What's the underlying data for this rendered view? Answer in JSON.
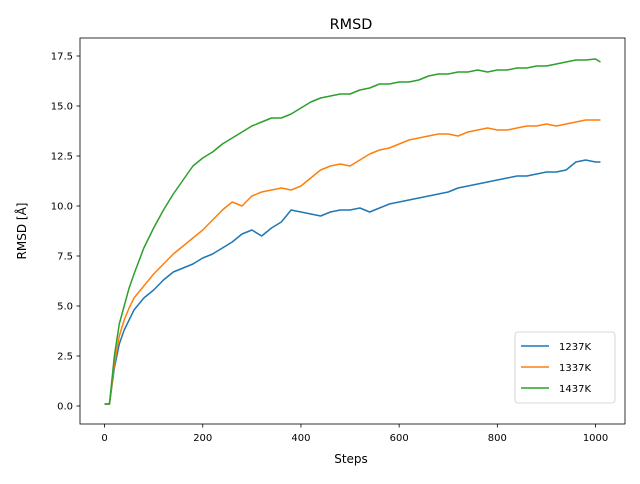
{
  "chart_data": {
    "type": "line",
    "title": "RMSD",
    "xlabel": "Steps",
    "ylabel": "RMSD [Å]",
    "xlim": [
      -50,
      1060
    ],
    "ylim": [
      -0.9,
      18.4
    ],
    "xticks": [
      0,
      200,
      400,
      600,
      800,
      1000
    ],
    "xtick_labels": [
      "0",
      "200",
      "400",
      "600",
      "800",
      "1000"
    ],
    "yticks": [
      0,
      2.5,
      5,
      7.5,
      10,
      12.5,
      15,
      17.5
    ],
    "ytick_labels": [
      "0.0",
      "2.5",
      "5.0",
      "7.5",
      "10.0",
      "12.5",
      "15.0",
      "17.5"
    ],
    "grid": false,
    "legend_position": "lower right",
    "series": [
      {
        "name": "1237K",
        "color": "#1f77b4",
        "x": [
          0,
          10,
          20,
          30,
          40,
          50,
          60,
          80,
          100,
          120,
          140,
          160,
          180,
          200,
          220,
          240,
          260,
          280,
          300,
          320,
          340,
          360,
          380,
          400,
          420,
          440,
          460,
          480,
          500,
          520,
          540,
          560,
          580,
          600,
          620,
          640,
          660,
          680,
          700,
          720,
          740,
          760,
          780,
          800,
          820,
          840,
          860,
          880,
          900,
          920,
          940,
          960,
          980,
          1000,
          1010
        ],
        "y": [
          0.1,
          0.1,
          1.9,
          3.1,
          3.8,
          4.3,
          4.8,
          5.4,
          5.8,
          6.3,
          6.7,
          6.9,
          7.1,
          7.4,
          7.6,
          7.9,
          8.2,
          8.6,
          8.8,
          8.5,
          8.9,
          9.2,
          9.8,
          9.7,
          9.6,
          9.5,
          9.7,
          9.8,
          9.8,
          9.9,
          9.7,
          9.9,
          10.1,
          10.2,
          10.3,
          10.4,
          10.5,
          10.6,
          10.7,
          10.9,
          11.0,
          11.1,
          11.2,
          11.3,
          11.4,
          11.5,
          11.5,
          11.6,
          11.7,
          11.7,
          11.8,
          12.2,
          12.3,
          12.2,
          12.2
        ]
      },
      {
        "name": "1337K",
        "color": "#ff7f0e",
        "x": [
          0,
          10,
          20,
          30,
          40,
          50,
          60,
          80,
          100,
          120,
          140,
          160,
          180,
          200,
          220,
          240,
          260,
          280,
          300,
          320,
          340,
          360,
          380,
          400,
          420,
          440,
          460,
          480,
          500,
          520,
          540,
          560,
          580,
          600,
          620,
          640,
          660,
          680,
          700,
          720,
          740,
          760,
          780,
          800,
          820,
          840,
          860,
          880,
          900,
          920,
          940,
          960,
          980,
          1000,
          1010
        ],
        "y": [
          0.1,
          0.1,
          2.1,
          3.5,
          4.3,
          4.9,
          5.4,
          6.0,
          6.6,
          7.1,
          7.6,
          8.0,
          8.4,
          8.8,
          9.3,
          9.8,
          10.2,
          10.0,
          10.5,
          10.7,
          10.8,
          10.9,
          10.8,
          11.0,
          11.4,
          11.8,
          12.0,
          12.1,
          12.0,
          12.3,
          12.6,
          12.8,
          12.9,
          13.1,
          13.3,
          13.4,
          13.5,
          13.6,
          13.6,
          13.5,
          13.7,
          13.8,
          13.9,
          13.8,
          13.8,
          13.9,
          14.0,
          14.0,
          14.1,
          14.0,
          14.1,
          14.2,
          14.3,
          14.3,
          14.3
        ]
      },
      {
        "name": "1437K",
        "color": "#2ca02c",
        "x": [
          0,
          10,
          20,
          30,
          40,
          50,
          60,
          80,
          100,
          120,
          140,
          160,
          180,
          200,
          220,
          240,
          260,
          280,
          300,
          320,
          340,
          360,
          380,
          400,
          420,
          440,
          460,
          480,
          500,
          520,
          540,
          560,
          580,
          600,
          620,
          640,
          660,
          680,
          700,
          720,
          740,
          760,
          780,
          800,
          820,
          840,
          860,
          880,
          900,
          920,
          940,
          960,
          980,
          1000,
          1010
        ],
        "y": [
          0.1,
          0.1,
          2.5,
          4.1,
          5.0,
          5.9,
          6.6,
          7.9,
          8.9,
          9.8,
          10.6,
          11.3,
          12.0,
          12.4,
          12.7,
          13.1,
          13.4,
          13.7,
          14.0,
          14.2,
          14.4,
          14.4,
          14.6,
          14.9,
          15.2,
          15.4,
          15.5,
          15.6,
          15.6,
          15.8,
          15.9,
          16.1,
          16.1,
          16.2,
          16.2,
          16.3,
          16.5,
          16.6,
          16.6,
          16.7,
          16.7,
          16.8,
          16.7,
          16.8,
          16.8,
          16.9,
          16.9,
          17.0,
          17.0,
          17.1,
          17.2,
          17.3,
          17.3,
          17.35,
          17.2
        ]
      }
    ]
  }
}
